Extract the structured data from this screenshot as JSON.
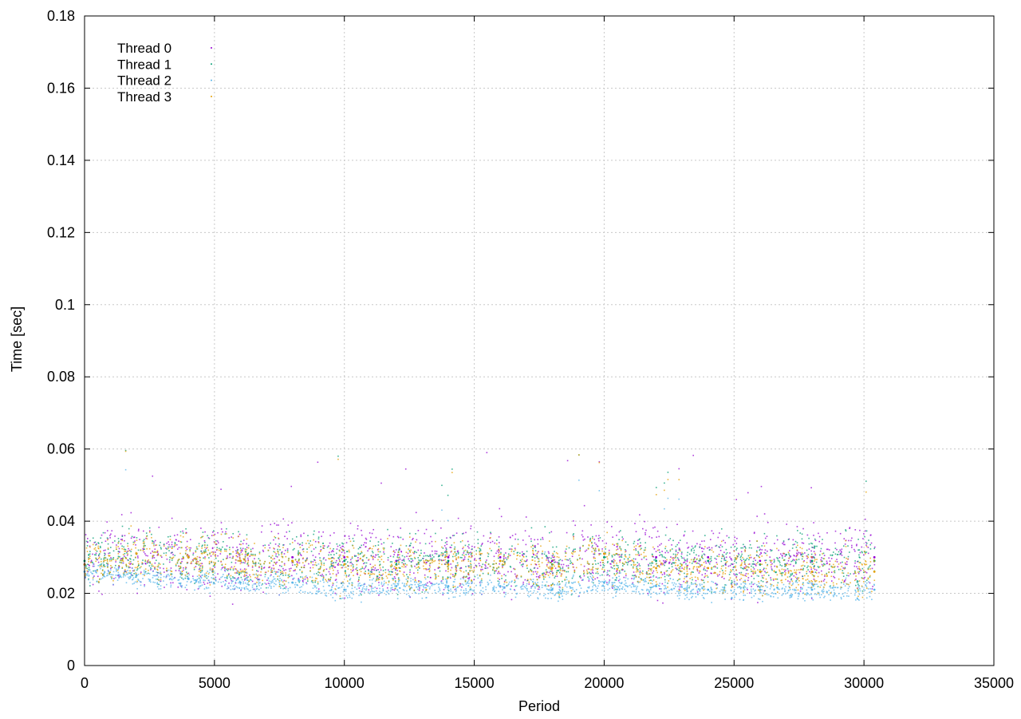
{
  "chart_data": {
    "type": "scatter",
    "xlabel": "Period",
    "ylabel": "Time [sec]",
    "xlim": [
      0,
      35000
    ],
    "ylim": [
      0,
      0.18
    ],
    "xticks": [
      0,
      5000,
      10000,
      15000,
      20000,
      25000,
      30000,
      35000
    ],
    "yticks": [
      0,
      0.02,
      0.04,
      0.06,
      0.08,
      0.1,
      0.12,
      0.14,
      0.16,
      0.18
    ],
    "grid": true,
    "legend_position": "top-left",
    "series": [
      {
        "name": "Thread 0",
        "color": "#9400d3",
        "x": [
          0,
          2000,
          4000,
          6000,
          8000,
          10000,
          12000,
          14000,
          16000,
          18000,
          20000,
          22000,
          24000,
          26000,
          28000,
          30400
        ],
        "y": [
          0.028,
          0.031,
          0.03,
          0.029,
          0.03,
          0.03,
          0.029,
          0.03,
          0.03,
          0.029,
          0.031,
          0.03,
          0.03,
          0.029,
          0.03,
          0.03
        ]
      },
      {
        "name": "Thread 1",
        "color": "#009e73",
        "x": [
          0,
          2000,
          4000,
          6000,
          8000,
          10000,
          12000,
          14000,
          16000,
          18000,
          20000,
          22000,
          24000,
          26000,
          28000,
          30400
        ],
        "y": [
          0.029,
          0.031,
          0.03,
          0.029,
          0.029,
          0.029,
          0.028,
          0.029,
          0.029,
          0.028,
          0.03,
          0.029,
          0.029,
          0.028,
          0.029,
          0.029
        ]
      },
      {
        "name": "Thread 2",
        "color": "#56b4e9",
        "x": [
          0,
          2000,
          4000,
          6000,
          8000,
          10000,
          12000,
          14000,
          16000,
          18000,
          20000,
          22000,
          24000,
          26000,
          28000,
          30400
        ],
        "y": [
          0.026,
          0.025,
          0.024,
          0.023,
          0.023,
          0.021,
          0.022,
          0.022,
          0.022,
          0.021,
          0.023,
          0.022,
          0.021,
          0.021,
          0.021,
          0.021
        ]
      },
      {
        "name": "Thread 3",
        "color": "#e69f00",
        "x": [
          0,
          2000,
          4000,
          6000,
          8000,
          10000,
          12000,
          14000,
          16000,
          18000,
          20000,
          22000,
          24000,
          26000,
          28000,
          30400
        ],
        "y": [
          0.028,
          0.031,
          0.03,
          0.029,
          0.029,
          0.028,
          0.027,
          0.028,
          0.029,
          0.027,
          0.031,
          0.027,
          0.027,
          0.026,
          0.026,
          0.026
        ]
      }
    ]
  }
}
